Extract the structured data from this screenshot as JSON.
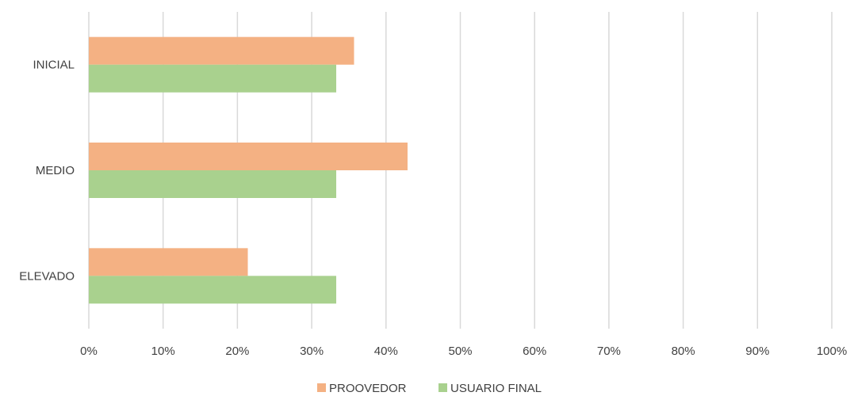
{
  "chart_data": {
    "type": "bar",
    "orientation": "horizontal",
    "categories": [
      "INICIAL",
      "MEDIO",
      "ELEVADO"
    ],
    "series": [
      {
        "name": "PROOVEDOR",
        "values": [
          0.357,
          0.429,
          0.214
        ],
        "color": "#F4B183"
      },
      {
        "name": "USUARIO FINAL",
        "values": [
          0.333,
          0.333,
          0.333
        ],
        "color": "#A9D18E"
      }
    ],
    "xlim": [
      0,
      1
    ],
    "xticks": [
      0,
      0.1,
      0.2,
      0.3,
      0.4,
      0.5,
      0.6,
      0.7,
      0.8,
      0.9,
      1.0
    ],
    "xtick_labels": [
      "0%",
      "10%",
      "20%",
      "30%",
      "40%",
      "50%",
      "60%",
      "70%",
      "80%",
      "90%",
      "100%"
    ],
    "grid": true,
    "legend_position": "bottom-center",
    "gridline_color": "#D9D9D9"
  }
}
